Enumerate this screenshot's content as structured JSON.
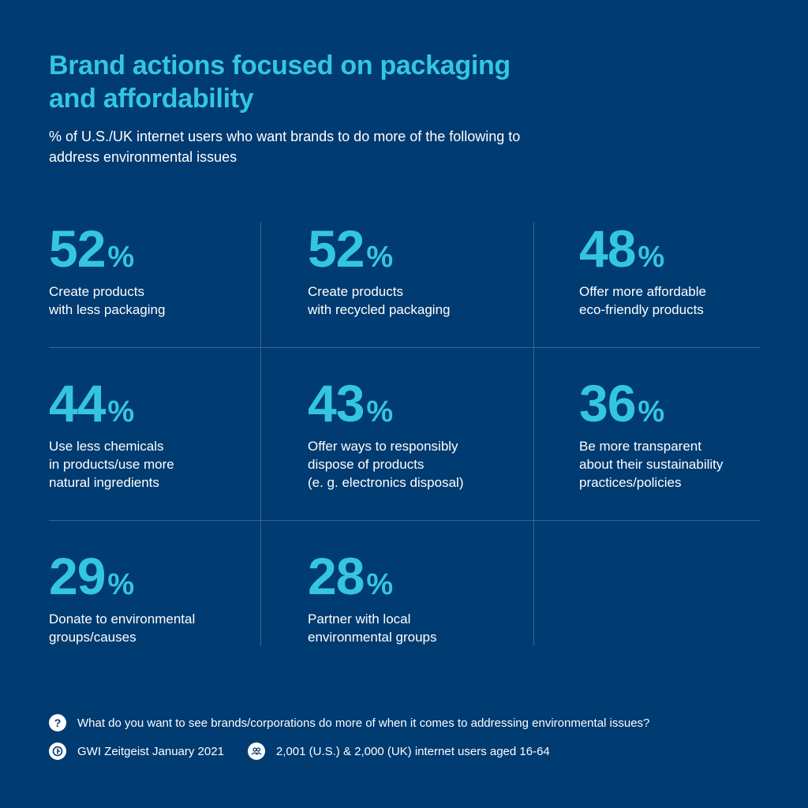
{
  "header": {
    "title": "Brand actions focused on packaging and affordability",
    "subtitle": "% of U.S./UK internet users who want brands to do more of the following to address environmental issues"
  },
  "chart_data": {
    "type": "table",
    "unit": "%",
    "items": [
      {
        "value": 52,
        "label": "Create products\nwith less packaging"
      },
      {
        "value": 52,
        "label": "Create products\nwith recycled packaging"
      },
      {
        "value": 48,
        "label": "Offer more affordable\neco-friendly products"
      },
      {
        "value": 44,
        "label": "Use less chemicals\nin products/use more\nnatural ingredients"
      },
      {
        "value": 43,
        "label": "Offer ways to responsibly\ndispose of products\n(e. g. electronics disposal)"
      },
      {
        "value": 36,
        "label": "Be more transparent\nabout their sustainability\npractices/policies"
      },
      {
        "value": 29,
        "label": "Donate to environmental\ngroups/causes"
      },
      {
        "value": 28,
        "label": "Partner with local\nenvironmental groups"
      }
    ]
  },
  "footer": {
    "question": "What do you want to see brands/corporations do more of when it comes to addressing environmental issues?",
    "source": "GWI Zeitgeist January 2021",
    "sample": "2,001 (U.S.) & 2,000 (UK) internet users aged 16-64"
  },
  "colors": {
    "background": "#003b71",
    "accent": "#34c6e0",
    "divider": "#3c6592"
  },
  "icons": {
    "question": "question-icon",
    "source": "gwi-logo-icon",
    "sample": "people-icon"
  }
}
